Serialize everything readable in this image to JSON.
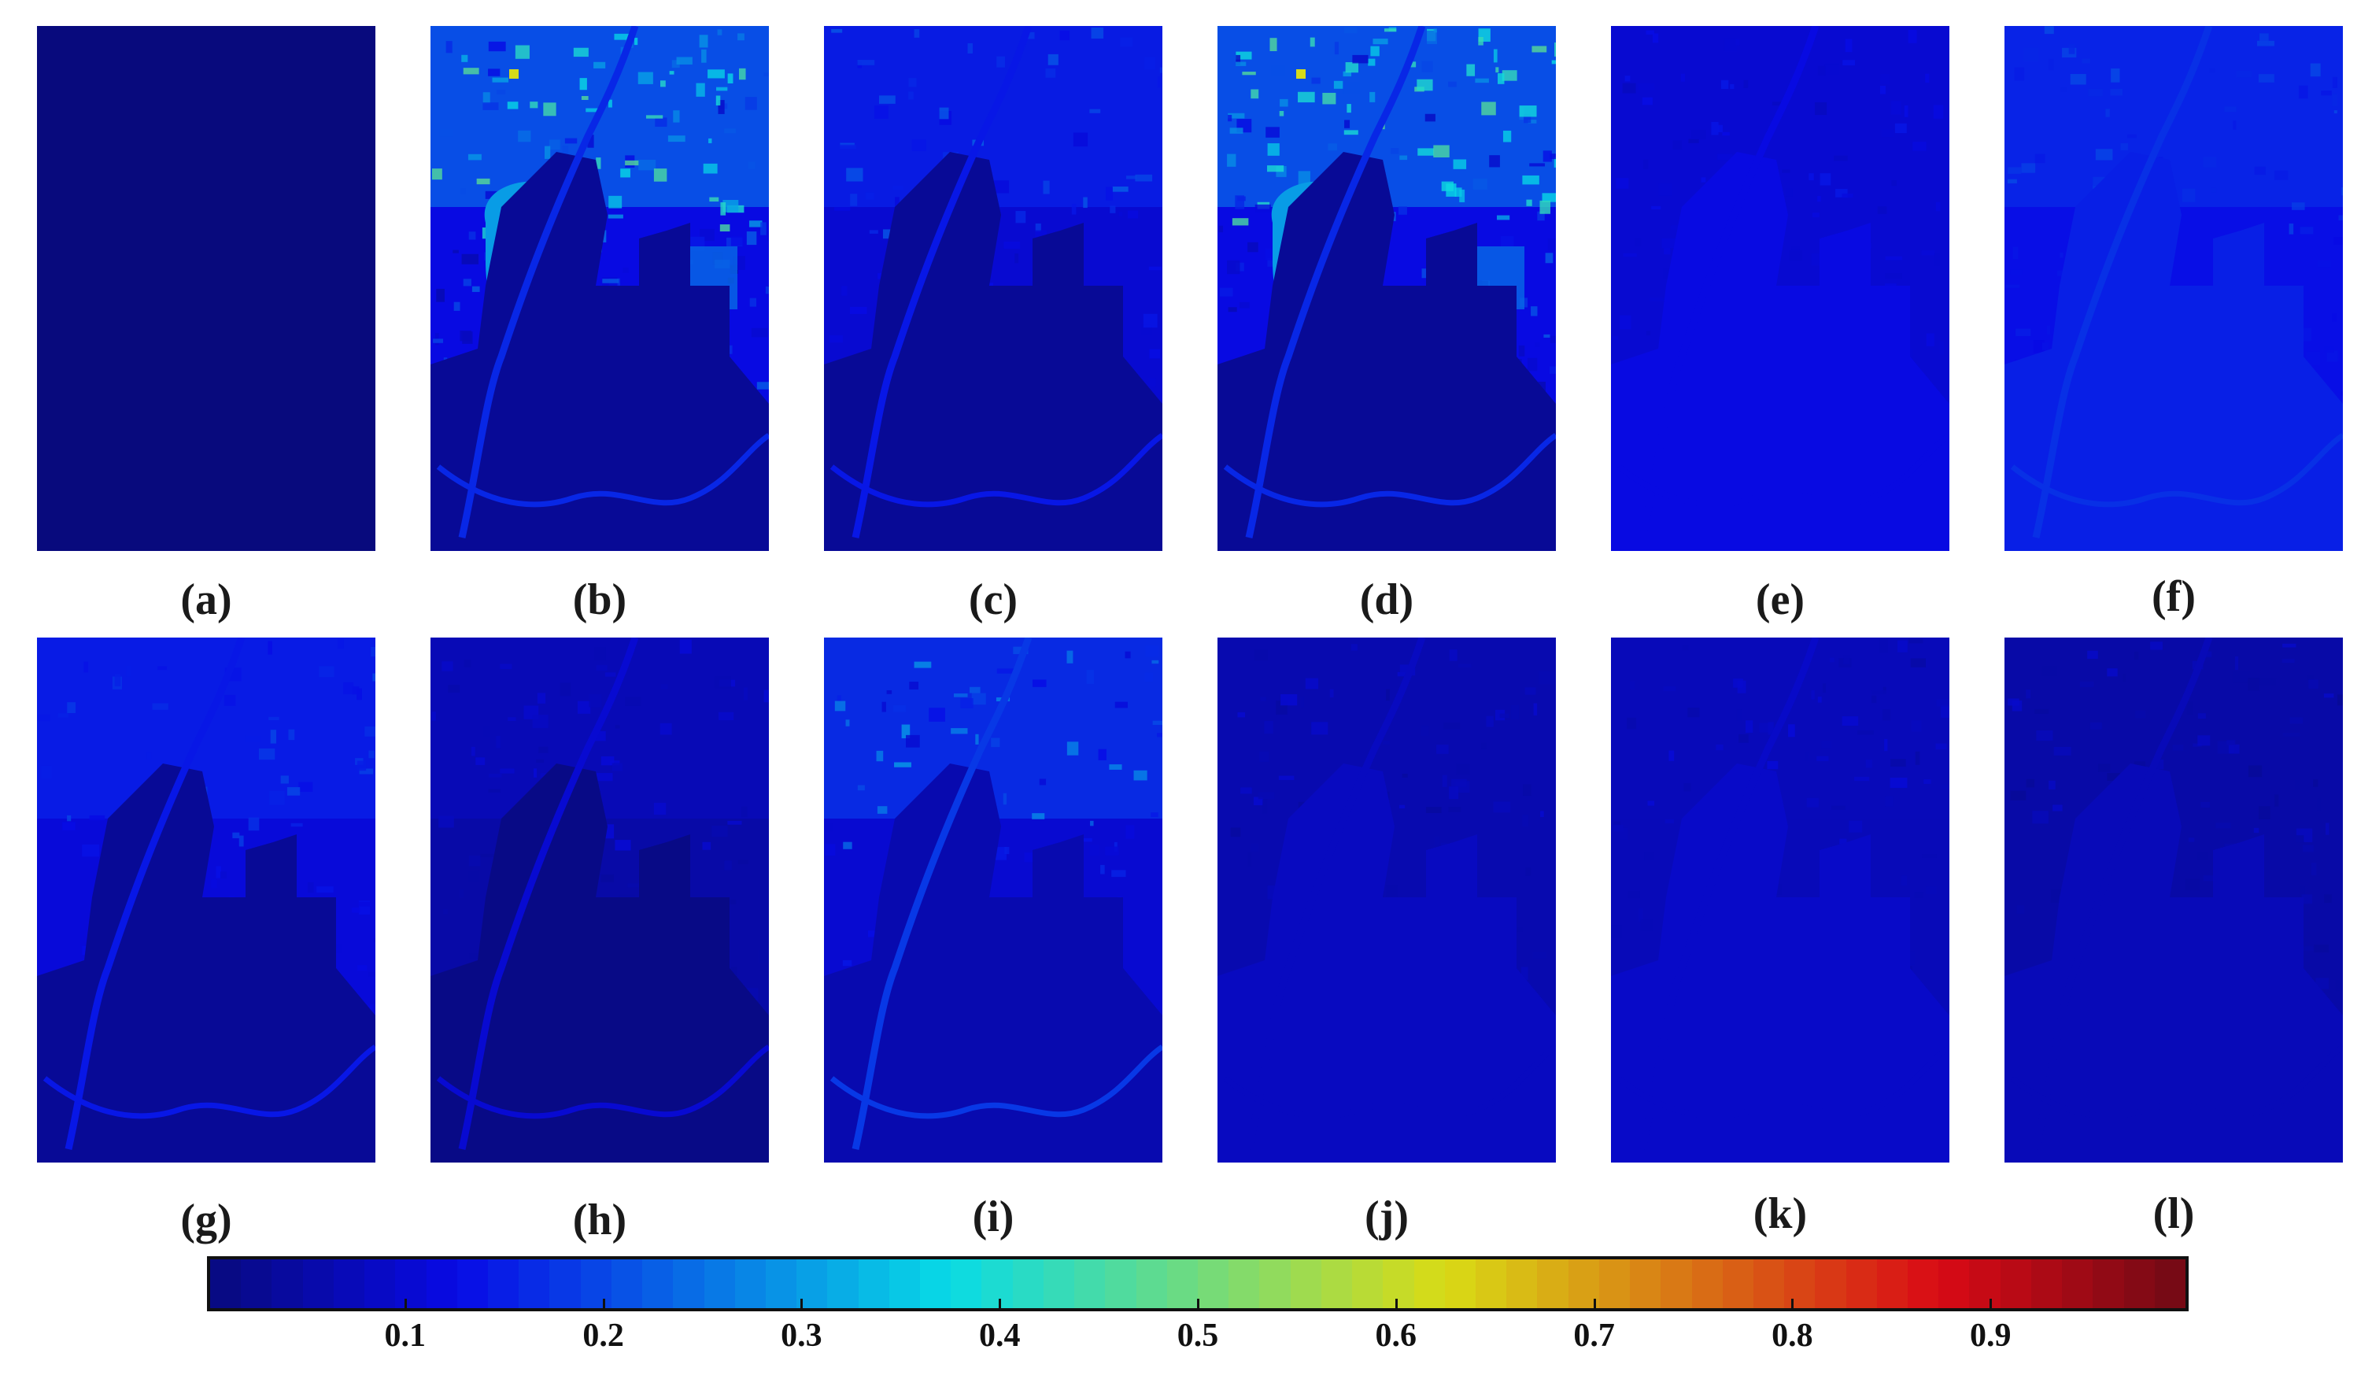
{
  "panels": [
    {
      "label": "(a)",
      "variant": "flat",
      "base_value": 0.0
    },
    {
      "label": "(b)",
      "variant": "bright",
      "base_value": 0.12
    },
    {
      "label": "(c)",
      "variant": "mid",
      "base_value": 0.1
    },
    {
      "label": "(d)",
      "variant": "bright",
      "base_value": 0.12
    },
    {
      "label": "(e)",
      "variant": "faint",
      "base_value": 0.1
    },
    {
      "label": "(f)",
      "variant": "faint-light",
      "base_value": 0.13
    },
    {
      "label": "(g)",
      "variant": "soft",
      "base_value": 0.11
    },
    {
      "label": "(h)",
      "variant": "dark",
      "base_value": 0.05
    },
    {
      "label": "(i)",
      "variant": "textured",
      "base_value": 0.1
    },
    {
      "label": "(j)",
      "variant": "uniform",
      "base_value": 0.06
    },
    {
      "label": "(k)",
      "variant": "uniform",
      "base_value": 0.07
    },
    {
      "label": "(l)",
      "variant": "uniform",
      "base_value": 0.05
    }
  ],
  "colorbar": {
    "min": 0,
    "max": 1,
    "segments": 64,
    "ticks": [
      "0.1",
      "0.2",
      "0.3",
      "0.4",
      "0.5",
      "0.6",
      "0.7",
      "0.8",
      "0.9"
    ],
    "tick_values": [
      0.1,
      0.2,
      0.3,
      0.4,
      0.5,
      0.6,
      0.7,
      0.8,
      0.9
    ],
    "colormap": "jet"
  },
  "colors": {
    "darkest": "#2a3580",
    "dark_blue": "#233a96",
    "mid_blue": "#2f5fb8",
    "light_blue": "#3f8fd8",
    "cyan": "#3ec3ec",
    "background": "#ffffff"
  }
}
